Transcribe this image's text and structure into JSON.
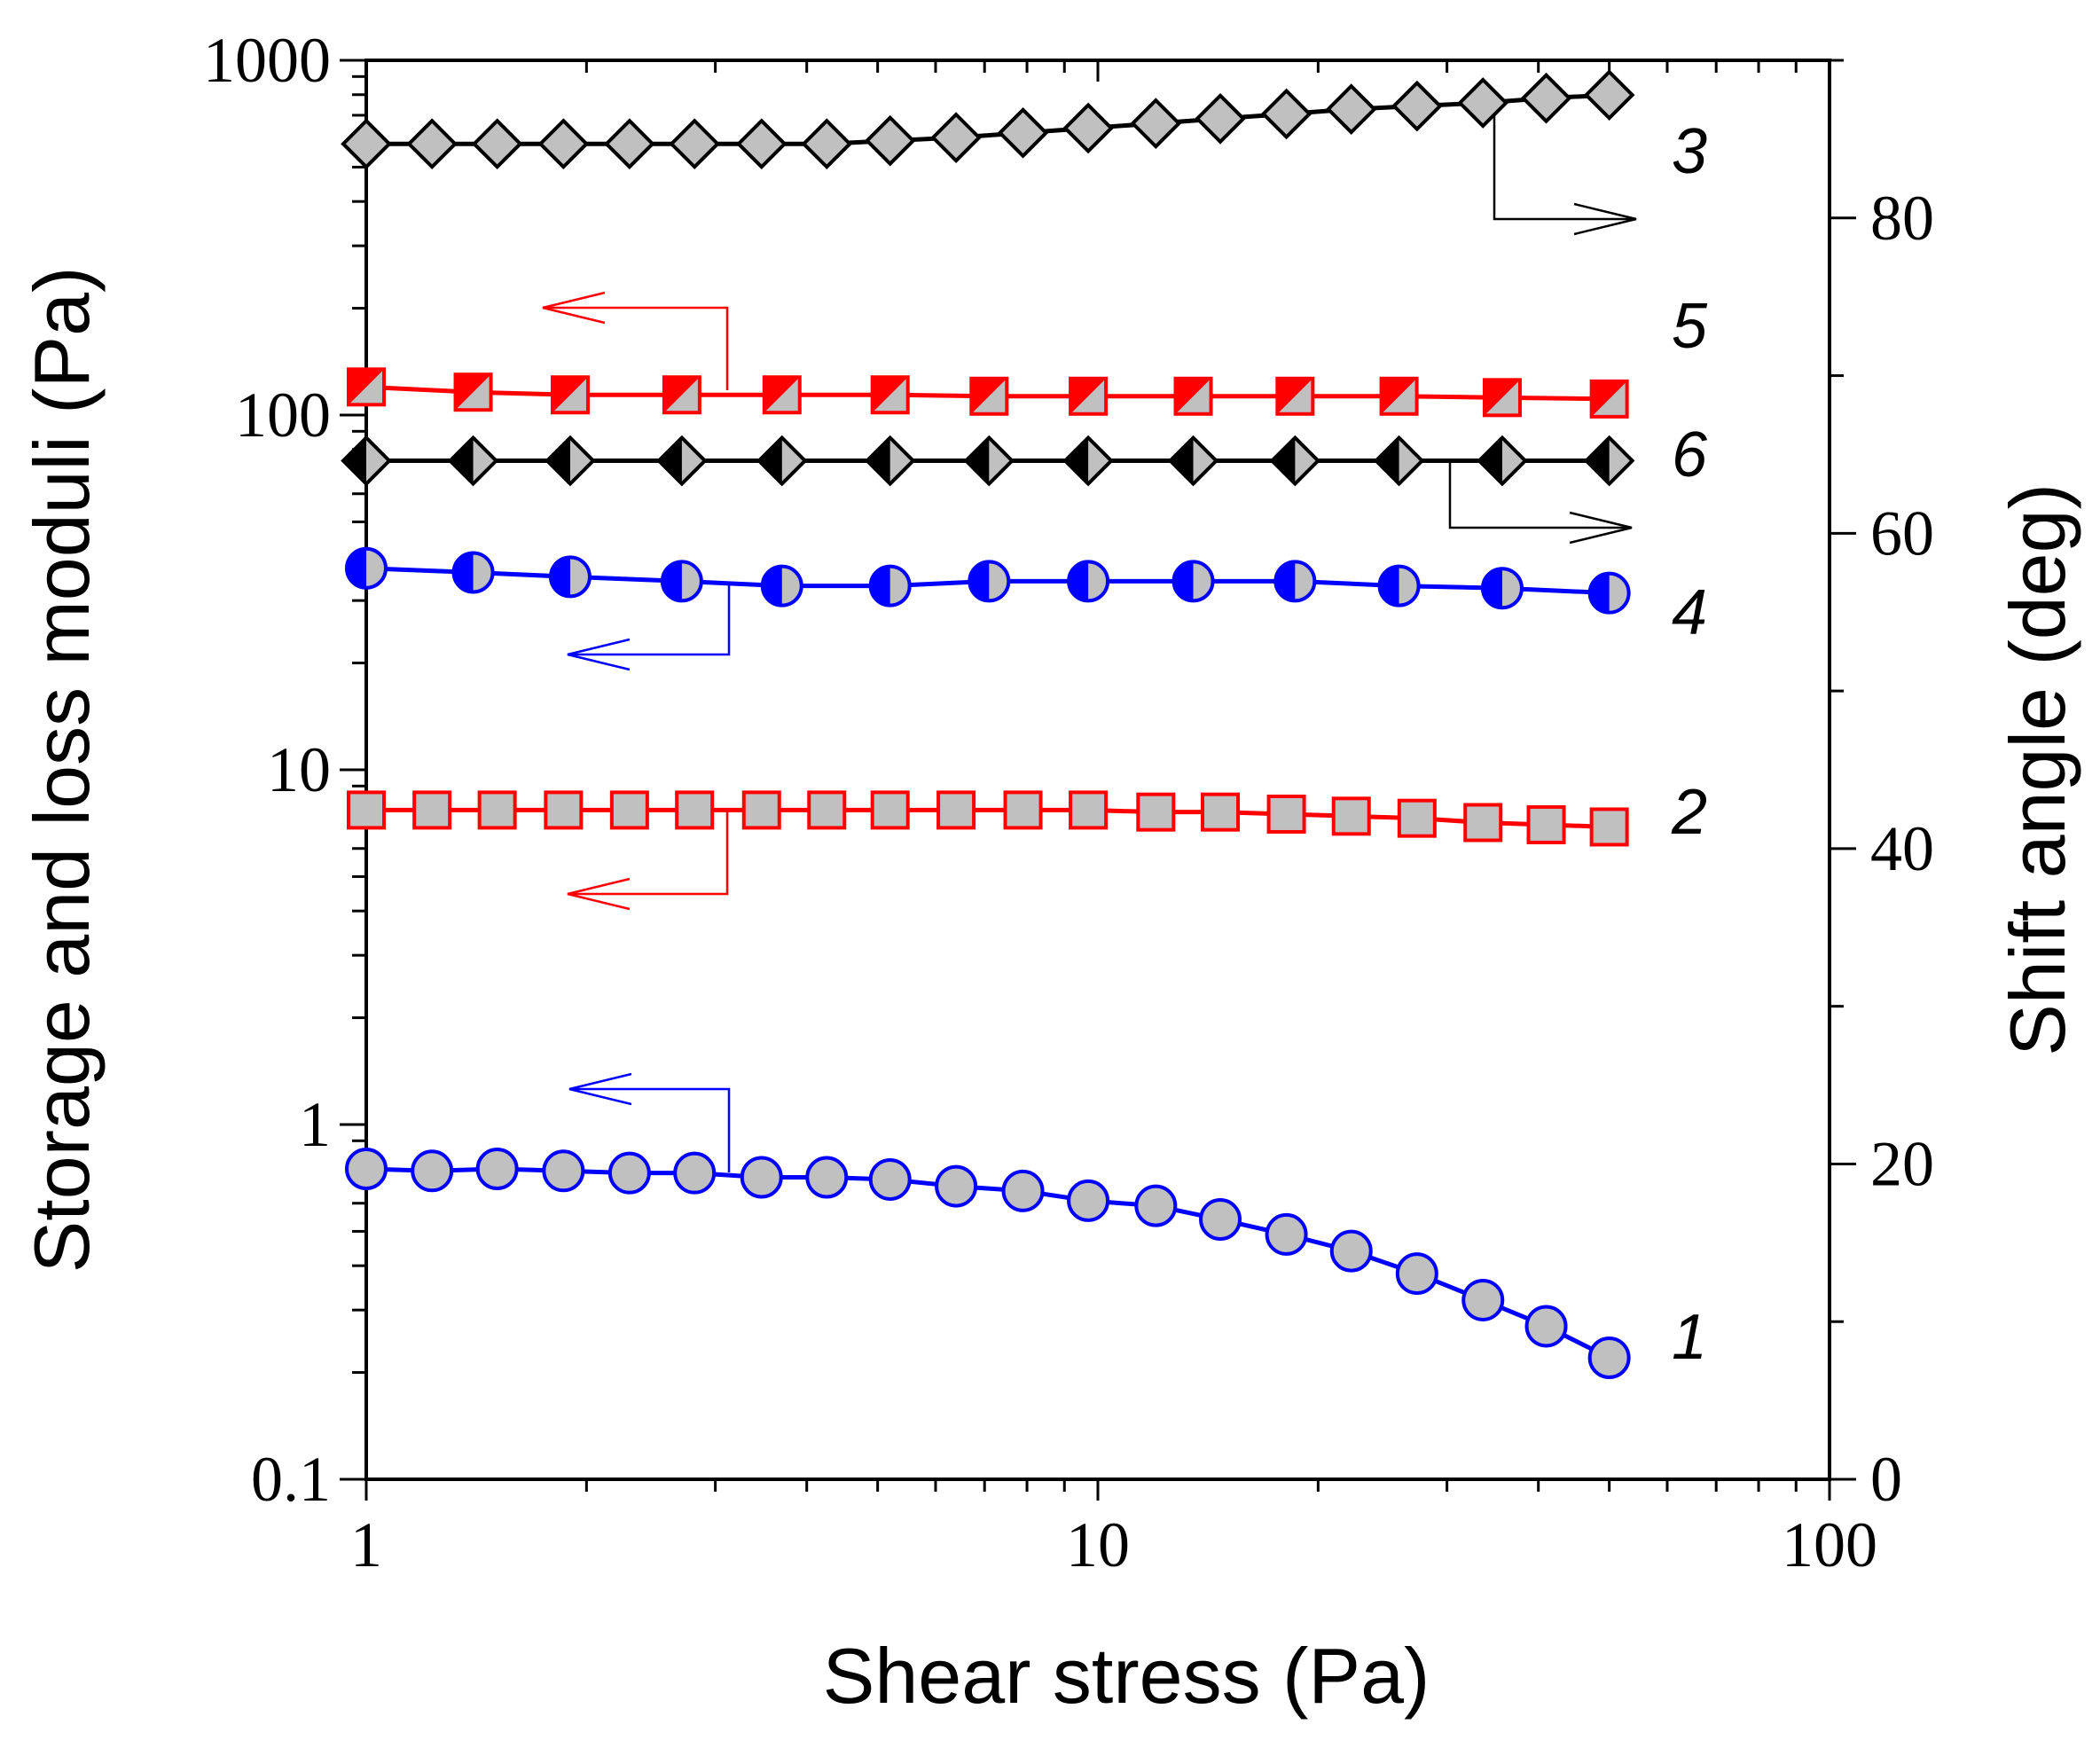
{
  "chart_data": {
    "type": "scatter",
    "xlabel": "Shear stress (Pa)",
    "ylabel": "Storage and loss moduli (Pa)",
    "y2label": "Shift angle (deg)",
    "xscale": "log",
    "yscale": "log",
    "xlim": [
      1,
      100
    ],
    "ylim": [
      0.1,
      1000
    ],
    "y2lim": [
      0,
      90
    ],
    "x_ticks": [
      "1",
      "10",
      "100"
    ],
    "y_ticks": [
      "0.1",
      "1",
      "10",
      "100",
      "1000"
    ],
    "y2_ticks": [
      "0",
      "20",
      "40",
      "60",
      "80"
    ],
    "series": [
      {
        "name": "1",
        "axis": "left",
        "marker": "circle",
        "line_color": "#0000ff",
        "fill": "#c0c0c0",
        "half_fill": "",
        "x": [
          1.0,
          1.23,
          1.51,
          1.86,
          2.29,
          2.81,
          3.47,
          4.26,
          5.2,
          6.4,
          7.9,
          9.7,
          12.0,
          14.7,
          18.1,
          22.2,
          27.3,
          33.6,
          41.0,
          50.0
        ],
        "y": [
          0.75,
          0.74,
          0.75,
          0.74,
          0.73,
          0.73,
          0.71,
          0.71,
          0.7,
          0.67,
          0.65,
          0.61,
          0.59,
          0.54,
          0.49,
          0.44,
          0.38,
          0.32,
          0.27,
          0.22
        ]
      },
      {
        "name": "2",
        "axis": "left",
        "marker": "square",
        "line_color": "#ff0000",
        "fill": "#c0c0c0",
        "half_fill": "",
        "x": [
          1.0,
          1.23,
          1.51,
          1.86,
          2.29,
          2.81,
          3.47,
          4.26,
          5.2,
          6.4,
          7.9,
          9.7,
          12.0,
          14.7,
          18.1,
          22.2,
          27.3,
          33.6,
          41.0,
          50.0
        ],
        "y": [
          7.7,
          7.7,
          7.7,
          7.7,
          7.7,
          7.7,
          7.7,
          7.7,
          7.7,
          7.7,
          7.7,
          7.7,
          7.6,
          7.6,
          7.5,
          7.4,
          7.3,
          7.1,
          7.0,
          6.9
        ]
      },
      {
        "name": "3",
        "axis": "right",
        "marker": "diamond",
        "line_color": "#000000",
        "fill": "#c0c0c0",
        "half_fill": "",
        "x": [
          1.0,
          1.23,
          1.51,
          1.86,
          2.29,
          2.81,
          3.47,
          4.26,
          5.2,
          6.4,
          7.9,
          9.7,
          12.0,
          14.7,
          18.1,
          22.2,
          27.3,
          33.6,
          41.0,
          50.0
        ],
        "y": [
          84.7,
          84.7,
          84.7,
          84.7,
          84.7,
          84.7,
          84.7,
          84.7,
          84.9,
          85.1,
          85.4,
          85.7,
          86.0,
          86.3,
          86.6,
          86.9,
          87.1,
          87.3,
          87.6,
          87.8
        ]
      },
      {
        "name": "4",
        "axis": "left",
        "marker": "circle",
        "line_color": "#0000ff",
        "fill": "#c0c0c0",
        "half_fill": "#0000ff",
        "x": [
          1.0,
          1.4,
          1.9,
          2.7,
          3.7,
          5.2,
          7.1,
          9.7,
          13.5,
          18.6,
          25.8,
          35.7,
          50.0
        ],
        "y": [
          37,
          36,
          35,
          34,
          33,
          33,
          34,
          34,
          34,
          34,
          33,
          32.5,
          31.5
        ]
      },
      {
        "name": "5",
        "axis": "left",
        "marker": "square",
        "line_color": "#ff0000",
        "fill": "#c0c0c0",
        "half_fill": "#ff0000",
        "x": [
          1.0,
          1.4,
          1.9,
          2.7,
          3.7,
          5.2,
          7.1,
          9.7,
          13.5,
          18.6,
          25.8,
          35.7,
          50.0
        ],
        "y": [
          120,
          116,
          114,
          114,
          114,
          114,
          113,
          113,
          113,
          113,
          113,
          112,
          111
        ]
      },
      {
        "name": "6",
        "axis": "right",
        "marker": "diamond",
        "line_color": "#000000",
        "fill": "#c0c0c0",
        "half_fill": "#000000",
        "x": [
          1.0,
          1.4,
          1.9,
          2.7,
          3.7,
          5.2,
          7.1,
          9.7,
          13.5,
          18.6,
          25.8,
          35.7,
          50.0
        ],
        "y": [
          64.6,
          64.6,
          64.6,
          64.6,
          64.6,
          64.6,
          64.6,
          64.6,
          64.6,
          64.6,
          64.6,
          64.6,
          64.6
        ]
      }
    ],
    "axis_indicators": [
      {
        "series": "3",
        "direction": "right",
        "color": "#000000"
      },
      {
        "series": "5",
        "direction": "left",
        "color": "#ff0000"
      },
      {
        "series": "6",
        "direction": "right",
        "color": "#000000"
      },
      {
        "series": "4",
        "direction": "left",
        "color": "#0000ff"
      },
      {
        "series": "2",
        "direction": "left",
        "color": "#ff0000"
      },
      {
        "series": "1",
        "direction": "left",
        "color": "#0000ff"
      }
    ]
  }
}
